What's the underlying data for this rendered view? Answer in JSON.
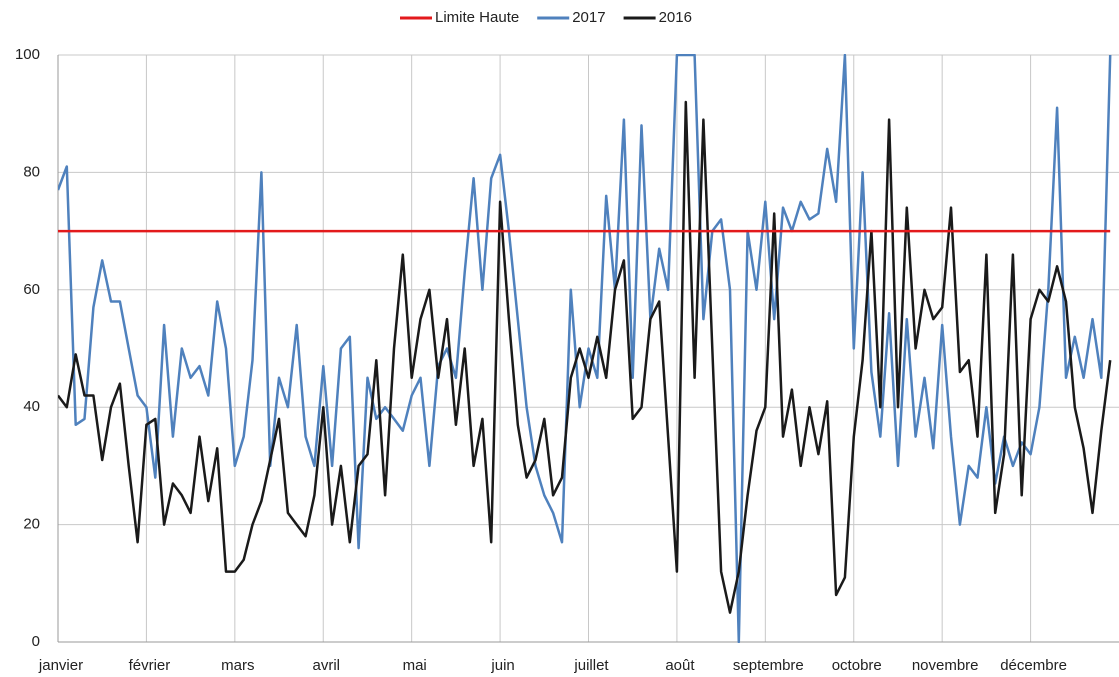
{
  "chart_data": {
    "type": "line",
    "categories": [
      "janvier",
      null,
      null,
      null,
      null,
      null,
      null,
      null,
      null,
      null,
      "février",
      null,
      null,
      null,
      null,
      null,
      null,
      null,
      null,
      null,
      "mars",
      null,
      null,
      null,
      null,
      null,
      null,
      null,
      null,
      null,
      "avril",
      null,
      null,
      null,
      null,
      null,
      null,
      null,
      null,
      null,
      "mai",
      null,
      null,
      null,
      null,
      null,
      null,
      null,
      null,
      null,
      "juin",
      null,
      null,
      null,
      null,
      null,
      null,
      null,
      null,
      null,
      "juillet",
      null,
      null,
      null,
      null,
      null,
      null,
      null,
      null,
      null,
      "août",
      null,
      null,
      null,
      null,
      null,
      null,
      null,
      null,
      null,
      "septembre",
      null,
      null,
      null,
      null,
      null,
      null,
      null,
      null,
      null,
      "octobre",
      null,
      null,
      null,
      null,
      null,
      null,
      null,
      null,
      null,
      "novembre",
      null,
      null,
      null,
      null,
      null,
      null,
      null,
      null,
      null,
      "décembre",
      null,
      null,
      null,
      null,
      null,
      null,
      null,
      null,
      null
    ],
    "series": [
      {
        "name": "Limite Haute",
        "color": "#e31a1c",
        "values": [
          70,
          70,
          70,
          70,
          70,
          70,
          70,
          70,
          70,
          70,
          70,
          70,
          70,
          70,
          70,
          70,
          70,
          70,
          70,
          70,
          70,
          70,
          70,
          70,
          70,
          70,
          70,
          70,
          70,
          70,
          70,
          70,
          70,
          70,
          70,
          70,
          70,
          70,
          70,
          70,
          70,
          70,
          70,
          70,
          70,
          70,
          70,
          70,
          70,
          70,
          70,
          70,
          70,
          70,
          70,
          70,
          70,
          70,
          70,
          70,
          70,
          70,
          70,
          70,
          70,
          70,
          70,
          70,
          70,
          70,
          70,
          70,
          70,
          70,
          70,
          70,
          70,
          70,
          70,
          70,
          70,
          70,
          70,
          70,
          70,
          70,
          70,
          70,
          70,
          70,
          70,
          70,
          70,
          70,
          70,
          70,
          70,
          70,
          70,
          70,
          70,
          70,
          70,
          70,
          70,
          70,
          70,
          70,
          70,
          70,
          70,
          70,
          70,
          70,
          70,
          70,
          70,
          70,
          70,
          70
        ]
      },
      {
        "name": "2017",
        "color": "#4f81bd",
        "values": [
          77,
          81,
          37,
          38,
          57,
          65,
          58,
          58,
          50,
          42,
          40,
          28,
          54,
          35,
          50,
          45,
          47,
          42,
          58,
          50,
          30,
          35,
          48,
          80,
          30,
          45,
          40,
          54,
          35,
          30,
          47,
          30,
          50,
          52,
          16,
          45,
          38,
          40,
          38,
          36,
          42,
          45,
          30,
          47,
          50,
          45,
          63,
          79,
          60,
          79,
          83,
          70,
          55,
          40,
          30,
          25,
          22,
          17,
          60,
          40,
          50,
          45,
          76,
          60,
          89,
          45,
          88,
          55,
          67,
          60,
          100,
          100,
          100,
          55,
          70,
          72,
          60,
          0,
          70,
          60,
          75,
          55,
          74,
          70,
          75,
          72,
          73,
          84,
          75,
          100,
          50,
          80,
          46,
          35,
          56,
          30,
          55,
          35,
          45,
          33,
          54,
          35,
          20,
          30,
          28,
          40,
          27,
          35,
          30,
          34,
          32,
          40,
          60,
          91,
          45,
          52,
          45,
          55,
          45,
          100
        ]
      },
      {
        "name": "2016",
        "color": "#1a1a1a",
        "values": [
          42,
          40,
          49,
          42,
          42,
          31,
          40,
          44,
          30,
          17,
          37,
          38,
          20,
          27,
          25,
          22,
          35,
          24,
          33,
          12,
          12,
          14,
          20,
          24,
          31,
          38,
          22,
          20,
          18,
          25,
          40,
          20,
          30,
          17,
          30,
          32,
          48,
          25,
          50,
          66,
          45,
          55,
          60,
          45,
          55,
          37,
          50,
          30,
          38,
          17,
          75,
          55,
          37,
          28,
          31,
          38,
          25,
          28,
          45,
          50,
          45,
          52,
          45,
          60,
          65,
          38,
          40,
          55,
          58,
          35,
          12,
          92,
          45,
          89,
          50,
          12,
          5,
          12,
          25,
          36,
          40,
          73,
          35,
          43,
          30,
          40,
          32,
          41,
          8,
          11,
          35,
          48,
          70,
          40,
          89,
          40,
          74,
          50,
          60,
          55,
          57,
          74,
          46,
          48,
          35,
          66,
          22,
          32,
          66,
          25,
          55,
          60,
          58,
          64,
          58,
          40,
          33,
          22,
          36,
          48
        ]
      }
    ],
    "ylim": [
      0,
      100
    ],
    "yticks": [
      0,
      20,
      40,
      60,
      80,
      100
    ],
    "grid": true,
    "legend": "top"
  }
}
